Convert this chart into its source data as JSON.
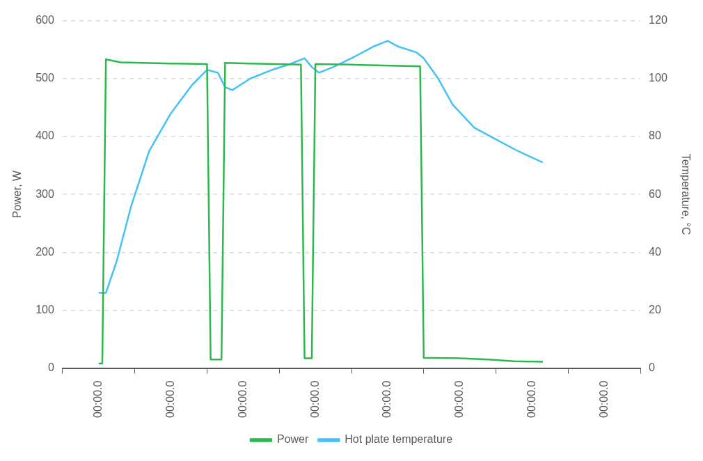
{
  "chart_data": {
    "type": "line",
    "ylabel": "Power, W",
    "y2label": "Temperature, °C",
    "categories": [
      null,
      null,
      null,
      null,
      null,
      null,
      null,
      null,
      null,
      null,
      "00:00.0",
      null,
      null,
      null,
      null,
      null,
      null,
      null,
      null,
      null,
      null,
      null,
      null,
      null,
      null,
      null,
      null,
      null,
      null,
      null,
      "00:00.0",
      null,
      null,
      null,
      null,
      null,
      null,
      null,
      null,
      null,
      null,
      null,
      null,
      null,
      null,
      null,
      null,
      null,
      null,
      null,
      "00:00.0",
      null,
      null,
      null,
      null,
      null,
      null,
      null,
      null,
      null,
      null,
      null,
      null,
      null,
      null,
      null,
      null,
      null,
      null,
      null,
      "00:00.0",
      null,
      null,
      null,
      null,
      null,
      null,
      null,
      null,
      null,
      null,
      null,
      null,
      null,
      null,
      null,
      null,
      null,
      null,
      null,
      "00:00.0",
      null,
      null,
      null,
      null,
      null,
      null,
      null,
      null,
      null,
      null,
      null,
      null,
      null,
      null,
      null,
      null,
      null,
      null,
      null,
      "00:00.0",
      null,
      null,
      null,
      null,
      null,
      null,
      null,
      null,
      null,
      null,
      null,
      null,
      null,
      null,
      null,
      null,
      null,
      null,
      null,
      "00:00.0",
      null,
      null,
      null,
      null,
      null,
      null,
      null,
      null,
      null,
      null,
      null,
      null,
      null,
      null,
      null,
      null,
      null,
      null,
      null,
      "00:00.0",
      null,
      null,
      null,
      null,
      null,
      null,
      null,
      null,
      null,
      null
    ],
    "ylim": [
      0,
      600
    ],
    "yticks": [
      0,
      100,
      200,
      300,
      400,
      500,
      600
    ],
    "y2lim": [
      0,
      120
    ],
    "y2ticks": [
      0,
      20,
      40,
      60,
      80,
      100,
      120
    ],
    "grid": "y",
    "legend": "bottom",
    "marker": "none",
    "line_style": "solid",
    "series": [
      {
        "name": "Power",
        "color": "#2db84d",
        "values": [
          null,
          null,
          null,
          null,
          null,
          null,
          null,
          null,
          null,
          null,
          8,
          8,
          533,
          null,
          null,
          null,
          528,
          null,
          null,
          null,
          null,
          null,
          null,
          null,
          null,
          null,
          null,
          null,
          null,
          null,
          526,
          null,
          null,
          null,
          null,
          null,
          null,
          null,
          null,
          null,
          525,
          15,
          null,
          null,
          15,
          527,
          null,
          null,
          null,
          null,
          null,
          null,
          526,
          null,
          null,
          null,
          null,
          null,
          null,
          null,
          null,
          null,
          null,
          null,
          null,
          null,
          524,
          17,
          null,
          17,
          525,
          null,
          null,
          null,
          null,
          null,
          null,
          null,
          null,
          null,
          524,
          null,
          null,
          null,
          null,
          null,
          null,
          null,
          null,
          null,
          null,
          null,
          null,
          null,
          null,
          null,
          null,
          null,
          null,
          521,
          18,
          null,
          null,
          null,
          null,
          null,
          null,
          null,
          null,
          null,
          17,
          null,
          null,
          null,
          null,
          null,
          null,
          null,
          15,
          null,
          null,
          null,
          null,
          null,
          null,
          12,
          null,
          null,
          null,
          null,
          null,
          null,
          null,
          11,
          null,
          null,
          null,
          null,
          null,
          null,
          null,
          null,
          null,
          null,
          null,
          null,
          null,
          null,
          null,
          null,
          null,
          null,
          null,
          null,
          null,
          null,
          null,
          null,
          null,
          null,
          null
        ]
      },
      {
        "name": "Hot plate temperature",
        "color": "#45c1f5",
        "axis": "y2",
        "values": [
          null,
          null,
          null,
          null,
          null,
          null,
          null,
          null,
          null,
          null,
          26,
          null,
          26,
          null,
          null,
          37,
          null,
          null,
          null,
          56,
          null,
          null,
          null,
          null,
          75,
          null,
          null,
          null,
          null,
          null,
          88,
          null,
          null,
          null,
          null,
          null,
          98,
          null,
          null,
          null,
          103,
          null,
          null,
          102,
          null,
          97,
          null,
          96,
          null,
          null,
          null,
          null,
          100,
          null,
          null,
          null,
          null,
          null,
          103,
          null,
          null,
          null,
          null,
          105,
          null,
          null,
          null,
          107,
          null,
          104,
          null,
          102,
          null,
          null,
          null,
          104,
          null,
          null,
          null,
          null,
          107,
          null,
          null,
          null,
          null,
          null,
          111,
          null,
          null,
          null,
          113,
          null,
          null,
          111,
          null,
          null,
          null,
          null,
          109,
          null,
          107,
          null,
          null,
          null,
          100,
          null,
          null,
          null,
          91,
          null,
          null,
          null,
          null,
          null,
          83,
          null,
          null,
          null,
          null,
          null,
          79,
          null,
          null,
          null,
          null,
          null,
          75,
          null,
          null,
          null,
          null,
          null,
          null,
          71,
          null,
          null,
          null,
          null,
          null,
          null,
          null,
          null,
          null,
          null,
          null,
          null,
          null,
          null,
          null,
          null,
          null,
          null,
          null,
          null,
          null,
          null,
          null,
          null,
          null,
          null,
          null
        ]
      }
    ]
  }
}
